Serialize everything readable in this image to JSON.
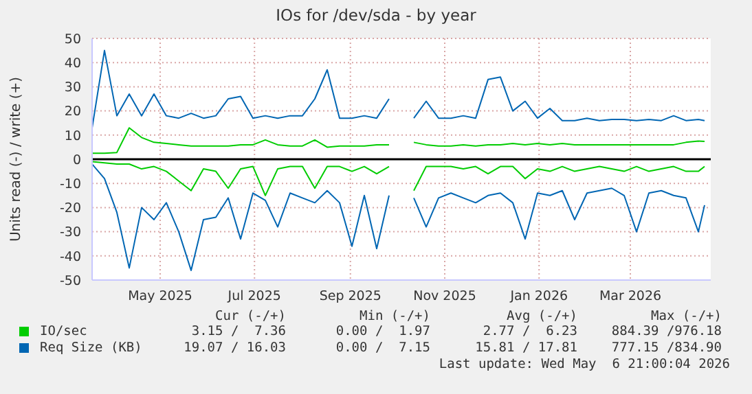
{
  "chart_data": {
    "type": "line",
    "title": "IOs for /dev/sda - by year",
    "ylabel": "Units read (-) / write (+)",
    "x": [
      "2025-04-01",
      "2025-04-09",
      "2025-04-17",
      "2025-04-25",
      "2025-05-03",
      "2025-05-11",
      "2025-05-19",
      "2025-05-27",
      "2025-06-04",
      "2025-06-12",
      "2025-06-20",
      "2025-06-28",
      "2025-07-06",
      "2025-07-14",
      "2025-07-22",
      "2025-07-30",
      "2025-08-07",
      "2025-08-15",
      "2025-08-23",
      "2025-08-31",
      "2025-09-08",
      "2025-09-16",
      "2025-09-24",
      "2025-10-02",
      "2025-10-10",
      "2025-10-18",
      "2025-10-26",
      "2025-11-03",
      "2025-11-11",
      "2025-11-19",
      "2025-11-27",
      "2025-12-05",
      "2025-12-13",
      "2025-12-21",
      "2025-12-29",
      "2026-01-06",
      "2026-01-14",
      "2026-01-22",
      "2026-01-30",
      "2026-02-07",
      "2026-02-15",
      "2026-02-23",
      "2026-03-03",
      "2026-03-11",
      "2026-03-19",
      "2026-03-27",
      "2026-04-04",
      "2026-04-12",
      "2026-04-20",
      "2026-04-28",
      "2026-05-02"
    ],
    "series": [
      {
        "color": "#00cc00",
        "values": [
          -1,
          -1.5,
          -2,
          -2,
          -4,
          -3,
          -5,
          -9,
          -13,
          -4,
          -5,
          -12,
          -4,
          -3,
          -15,
          -4,
          -3,
          -3,
          -12,
          -3,
          -3,
          -5,
          -3,
          -6,
          -3,
          null,
          -13,
          -3,
          -3,
          -3,
          -4,
          -3,
          -6,
          -3,
          -3,
          -8,
          -4,
          -5,
          -3,
          -5,
          -4,
          -3,
          -4,
          -5,
          -3,
          -5,
          -4,
          -3,
          -5,
          -5,
          -3
        ]
      },
      {
        "name": "IO/sec",
        "color": "#00cc00",
        "values": [
          2.5,
          2.5,
          2.8,
          13,
          9,
          7,
          6.5,
          6,
          5.5,
          5.5,
          5.5,
          5.5,
          6,
          6,
          8,
          6,
          5.5,
          5.5,
          8,
          5,
          5.5,
          5.5,
          5.5,
          6,
          6,
          null,
          7,
          6,
          5.5,
          5.5,
          6,
          5.5,
          6,
          6,
          6.5,
          6,
          6.5,
          6,
          6.5,
          6,
          6,
          6,
          6,
          6,
          6,
          6,
          6,
          6,
          7,
          7.5,
          7.4
        ]
      },
      {
        "color": "#0066b3",
        "values": [
          -2,
          -8,
          -22,
          -45,
          -20,
          -25,
          -18,
          -30,
          -46,
          -25,
          -24,
          -16,
          -33,
          -14,
          -17,
          -28,
          -14,
          -16,
          -18,
          -13,
          -18,
          -36,
          -15,
          -37,
          -15,
          null,
          -16,
          -28,
          -16,
          -14,
          -16,
          -18,
          -15,
          -14,
          -18,
          -33,
          -14,
          -15,
          -13,
          -25,
          -14,
          -13,
          -12,
          -15,
          -30,
          -14,
          -13,
          -15,
          -16,
          -30,
          -19
        ]
      },
      {
        "name": "Req Size (KB)",
        "color": "#0066b3",
        "values": [
          13,
          45,
          18,
          27,
          18,
          27,
          18,
          17,
          19,
          17,
          18,
          25,
          26,
          17,
          18,
          17,
          18,
          18,
          25,
          37,
          17,
          17,
          18,
          17,
          25,
          null,
          17,
          24,
          17,
          17,
          18,
          17,
          33,
          34,
          20,
          24,
          17,
          21,
          16,
          16,
          17,
          16,
          16.5,
          16.5,
          16,
          16.5,
          16,
          18,
          16,
          16.5,
          16
        ]
      }
    ],
    "xlim": [
      "2025-04-01",
      "2026-05-06"
    ],
    "xticks": [
      {
        "value": "2025-05-15",
        "label": "May 2025"
      },
      {
        "value": "2025-07-15",
        "label": "Jul 2025"
      },
      {
        "value": "2025-09-15",
        "label": "Sep 2025"
      },
      {
        "value": "2025-11-15",
        "label": "Nov 2025"
      },
      {
        "value": "2026-01-15",
        "label": "Jan 2026"
      },
      {
        "value": "2026-03-15",
        "label": "Mar 2026"
      }
    ],
    "ylim": [
      -50,
      50
    ],
    "yticks": [
      -50,
      -40,
      -30,
      -20,
      -10,
      0,
      10,
      20,
      30,
      40,
      50
    ],
    "grid": true,
    "legend": "bottom",
    "ref_lines": [
      {
        "axis": "y",
        "value": 0,
        "color": "#000000"
      }
    ],
    "annotations": [
      "Cur (-/+)",
      "Min (-/+)",
      "Avg (-/+)",
      "Max (-/+)",
      "3.15 /  7.36",
      "0.00 /  1.97",
      "2.77 /  6.23",
      "884.39 /976.18",
      "19.07 / 16.03",
      "0.00 /  7.15",
      "15.81 / 17.81",
      "777.15 /834.90",
      "Last update: Wed May  6 21:00:04 2026"
    ]
  }
}
